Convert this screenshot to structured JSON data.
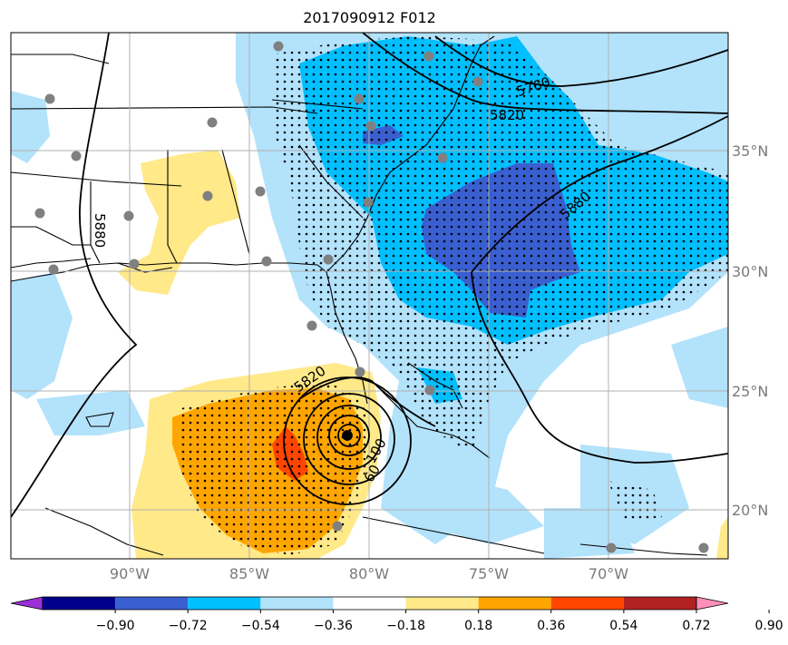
{
  "title": "2017090912 F012",
  "lat_ticks": [
    "35°N",
    "30°N",
    "25°N",
    "20°N"
  ],
  "lon_ticks": [
    "90°W",
    "85°W",
    "80°W",
    "75°W",
    "70°W"
  ],
  "colorbar": {
    "labels": [
      "−0.90",
      "−0.72",
      "−0.54",
      "−0.36",
      "−0.18",
      "0.18",
      "0.36",
      "0.54",
      "0.72",
      "0.90"
    ],
    "colors": [
      "#9b30d9",
      "#00008b",
      "#3a5fd0",
      "#00bfff",
      "#b3e2fb",
      "#ffffff",
      "#ffe989",
      "#ffa500",
      "#ff4500",
      "#b22222",
      "#ff8fb8"
    ]
  },
  "contour_labels": [
    "5760",
    "5820",
    "5880",
    "5880",
    "5820",
    "100",
    "60"
  ],
  "stations_count_note": ""
}
